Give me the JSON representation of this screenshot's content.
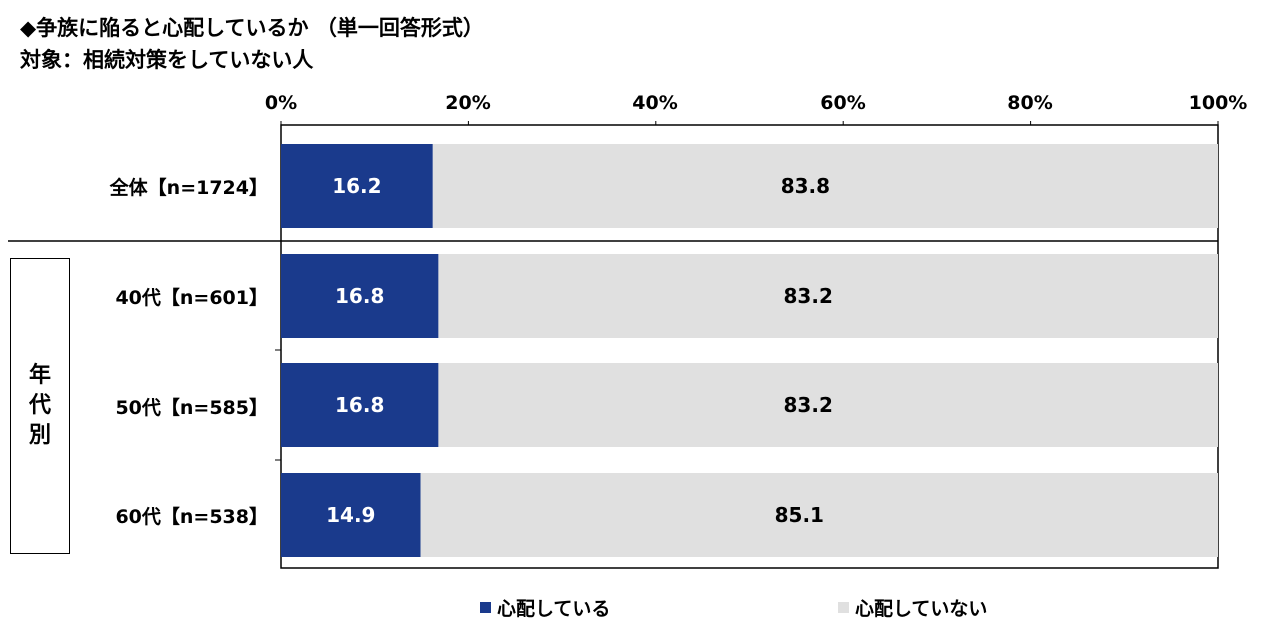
{
  "header": {
    "title_line1": "◆争族に陥ると心配しているか （単一回答形式）",
    "title_line2": "対象：相続対策をしていない人"
  },
  "chart_data": {
    "type": "bar",
    "orientation": "horizontal",
    "stacked": true,
    "percent": true,
    "xlim": [
      0,
      100
    ],
    "x_ticks": [
      "0%",
      "20%",
      "40%",
      "60%",
      "80%",
      "100%"
    ],
    "categories": [
      "全体【n=1724】",
      "40代【n=601】",
      "50代【n=585】",
      "60代【n=538】"
    ],
    "group_label": "年代別",
    "series": [
      {
        "name": "心配している",
        "color": "#1a3a8c",
        "values": [
          16.2,
          16.8,
          16.8,
          14.9
        ],
        "labels": [
          "16.2",
          "16.8",
          "16.8",
          "14.9"
        ]
      },
      {
        "name": "心配していない",
        "color": "#e0e0e0",
        "values": [
          83.8,
          83.2,
          83.2,
          85.1
        ],
        "labels": [
          "83.8",
          "83.2",
          "83.2",
          "85.1"
        ]
      }
    ],
    "legend_position": "bottom",
    "grid": false
  }
}
